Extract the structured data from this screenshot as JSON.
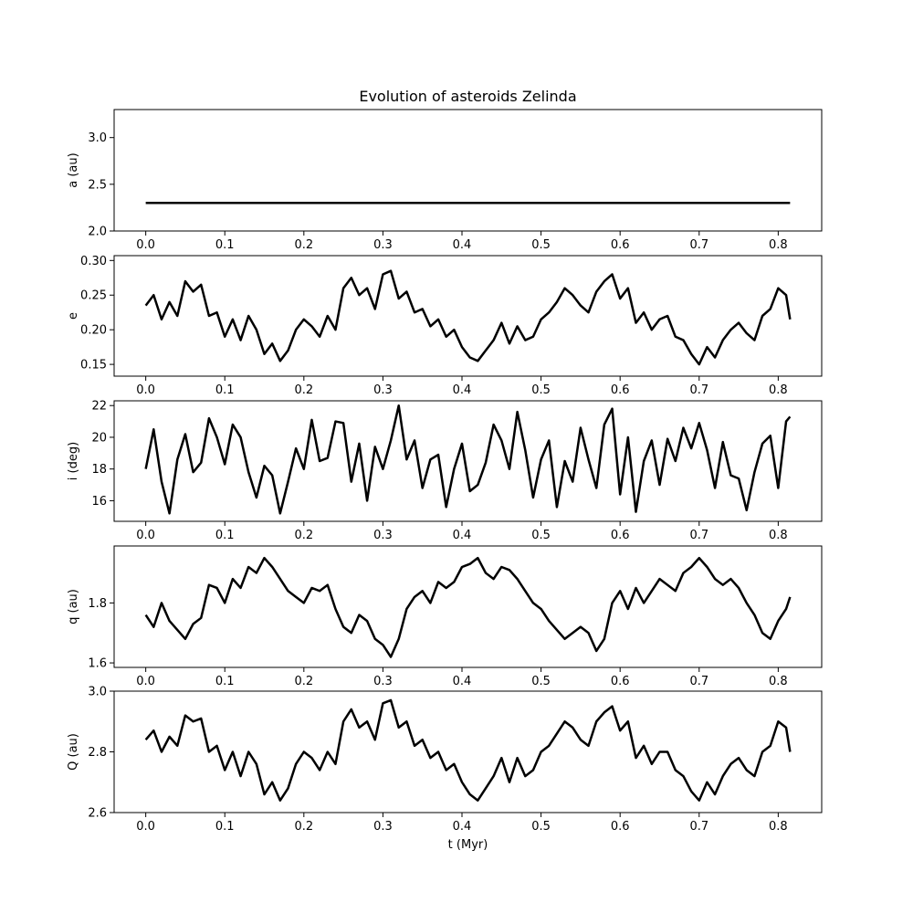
{
  "chart_data": {
    "type": "line",
    "title": "Evolution of asteroids Zelinda",
    "xlabel": "t (Myr)",
    "xlim": [
      -0.04,
      0.855
    ],
    "xticks": [
      "0.0",
      "0.1",
      "0.2",
      "0.3",
      "0.4",
      "0.5",
      "0.6",
      "0.7",
      "0.8"
    ],
    "line_color": "#000000",
    "grid": false,
    "panels": [
      {
        "ylabel": "a (au)",
        "ylim": [
          2.0,
          3.3
        ],
        "yticks": [
          "2.0",
          "2.5",
          "3.0"
        ],
        "series": [
          {
            "x": [
              0.0,
              0.815
            ],
            "y": [
              2.3,
              2.3
            ]
          }
        ]
      },
      {
        "ylabel": "e",
        "ylim": [
          0.133,
          0.307
        ],
        "yticks": [
          "0.15",
          "0.20",
          "0.25",
          "0.30"
        ],
        "series": [
          {
            "x": [
              0.0,
              0.01,
              0.02,
              0.03,
              0.04,
              0.05,
              0.06,
              0.07,
              0.08,
              0.09,
              0.1,
              0.11,
              0.12,
              0.13,
              0.14,
              0.15,
              0.16,
              0.17,
              0.18,
              0.19,
              0.2,
              0.21,
              0.22,
              0.23,
              0.24,
              0.25,
              0.26,
              0.27,
              0.28,
              0.29,
              0.3,
              0.31,
              0.32,
              0.33,
              0.34,
              0.35,
              0.36,
              0.37,
              0.38,
              0.39,
              0.4,
              0.41,
              0.42,
              0.43,
              0.44,
              0.45,
              0.46,
              0.47,
              0.48,
              0.49,
              0.5,
              0.51,
              0.52,
              0.53,
              0.54,
              0.55,
              0.56,
              0.57,
              0.58,
              0.59,
              0.6,
              0.61,
              0.62,
              0.63,
              0.64,
              0.65,
              0.66,
              0.67,
              0.68,
              0.69,
              0.7,
              0.71,
              0.72,
              0.73,
              0.74,
              0.75,
              0.76,
              0.77,
              0.78,
              0.79,
              0.8,
              0.81,
              0.815
            ],
            "y": [
              0.235,
              0.25,
              0.215,
              0.24,
              0.22,
              0.27,
              0.255,
              0.265,
              0.22,
              0.225,
              0.19,
              0.215,
              0.185,
              0.22,
              0.2,
              0.165,
              0.18,
              0.155,
              0.17,
              0.2,
              0.215,
              0.205,
              0.19,
              0.22,
              0.2,
              0.26,
              0.275,
              0.25,
              0.26,
              0.23,
              0.28,
              0.285,
              0.245,
              0.255,
              0.225,
              0.23,
              0.205,
              0.215,
              0.19,
              0.2,
              0.175,
              0.16,
              0.155,
              0.17,
              0.185,
              0.21,
              0.18,
              0.205,
              0.185,
              0.19,
              0.215,
              0.225,
              0.24,
              0.26,
              0.25,
              0.235,
              0.225,
              0.255,
              0.27,
              0.28,
              0.245,
              0.26,
              0.21,
              0.225,
              0.2,
              0.215,
              0.22,
              0.19,
              0.185,
              0.165,
              0.15,
              0.175,
              0.16,
              0.185,
              0.2,
              0.21,
              0.195,
              0.185,
              0.22,
              0.23,
              0.26,
              0.25,
              0.215
            ]
          }
        ]
      },
      {
        "ylabel": "i (deg)",
        "ylim": [
          14.7,
          22.3
        ],
        "yticks": [
          "16",
          "18",
          "20",
          "22"
        ],
        "series": [
          {
            "x": [
              0.0,
              0.01,
              0.02,
              0.03,
              0.04,
              0.05,
              0.06,
              0.07,
              0.08,
              0.09,
              0.1,
              0.11,
              0.12,
              0.13,
              0.14,
              0.15,
              0.16,
              0.17,
              0.18,
              0.19,
              0.2,
              0.21,
              0.22,
              0.23,
              0.24,
              0.25,
              0.26,
              0.27,
              0.28,
              0.29,
              0.3,
              0.31,
              0.32,
              0.33,
              0.34,
              0.35,
              0.36,
              0.37,
              0.38,
              0.39,
              0.4,
              0.41,
              0.42,
              0.43,
              0.44,
              0.45,
              0.46,
              0.47,
              0.48,
              0.49,
              0.5,
              0.51,
              0.52,
              0.53,
              0.54,
              0.55,
              0.56,
              0.57,
              0.58,
              0.59,
              0.6,
              0.61,
              0.62,
              0.63,
              0.64,
              0.65,
              0.66,
              0.67,
              0.68,
              0.69,
              0.7,
              0.71,
              0.72,
              0.73,
              0.74,
              0.75,
              0.76,
              0.77,
              0.78,
              0.79,
              0.8,
              0.81,
              0.815
            ],
            "y": [
              18.0,
              20.5,
              17.2,
              15.2,
              18.6,
              20.2,
              17.8,
              18.4,
              21.2,
              20.0,
              18.3,
              20.8,
              20.0,
              17.8,
              16.2,
              18.2,
              17.6,
              15.2,
              17.2,
              19.3,
              18.0,
              21.1,
              18.5,
              18.7,
              21.0,
              20.9,
              17.2,
              19.6,
              16.0,
              19.4,
              18.0,
              19.8,
              22.0,
              18.6,
              19.8,
              16.8,
              18.6,
              18.9,
              15.6,
              18.0,
              19.6,
              16.6,
              17.0,
              18.4,
              20.8,
              19.8,
              18.0,
              21.6,
              19.2,
              16.2,
              18.6,
              19.8,
              15.6,
              18.5,
              17.2,
              20.6,
              18.6,
              16.8,
              20.8,
              21.8,
              16.4,
              20.0,
              15.3,
              18.5,
              19.8,
              17.0,
              19.9,
              18.5,
              20.6,
              19.3,
              20.9,
              19.2,
              16.8,
              19.7,
              17.6,
              17.4,
              15.4,
              17.8,
              19.6,
              20.1,
              16.8,
              21.0,
              21.3
            ]
          }
        ]
      },
      {
        "ylabel": "q (au)",
        "ylim": [
          1.585,
          1.99
        ],
        "yticks": [
          "1.6",
          "1.8"
        ],
        "series": [
          {
            "x": [
              0.0,
              0.01,
              0.02,
              0.03,
              0.04,
              0.05,
              0.06,
              0.07,
              0.08,
              0.09,
              0.1,
              0.11,
              0.12,
              0.13,
              0.14,
              0.15,
              0.16,
              0.17,
              0.18,
              0.19,
              0.2,
              0.21,
              0.22,
              0.23,
              0.24,
              0.25,
              0.26,
              0.27,
              0.28,
              0.29,
              0.3,
              0.31,
              0.32,
              0.33,
              0.34,
              0.35,
              0.36,
              0.37,
              0.38,
              0.39,
              0.4,
              0.41,
              0.42,
              0.43,
              0.44,
              0.45,
              0.46,
              0.47,
              0.48,
              0.49,
              0.5,
              0.51,
              0.52,
              0.53,
              0.54,
              0.55,
              0.56,
              0.57,
              0.58,
              0.59,
              0.6,
              0.61,
              0.62,
              0.63,
              0.64,
              0.65,
              0.66,
              0.67,
              0.68,
              0.69,
              0.7,
              0.71,
              0.72,
              0.73,
              0.74,
              0.75,
              0.76,
              0.77,
              0.78,
              0.79,
              0.8,
              0.81,
              0.815
            ],
            "y": [
              1.76,
              1.72,
              1.8,
              1.74,
              1.71,
              1.68,
              1.73,
              1.75,
              1.86,
              1.85,
              1.8,
              1.88,
              1.85,
              1.92,
              1.9,
              1.95,
              1.92,
              1.88,
              1.84,
              1.82,
              1.8,
              1.85,
              1.84,
              1.86,
              1.78,
              1.72,
              1.7,
              1.76,
              1.74,
              1.68,
              1.66,
              1.62,
              1.68,
              1.78,
              1.82,
              1.84,
              1.8,
              1.87,
              1.85,
              1.87,
              1.92,
              1.93,
              1.95,
              1.9,
              1.88,
              1.92,
              1.91,
              1.88,
              1.84,
              1.8,
              1.78,
              1.74,
              1.71,
              1.68,
              1.7,
              1.72,
              1.7,
              1.64,
              1.68,
              1.8,
              1.84,
              1.78,
              1.85,
              1.8,
              1.84,
              1.88,
              1.86,
              1.84,
              1.9,
              1.92,
              1.95,
              1.92,
              1.88,
              1.86,
              1.88,
              1.85,
              1.8,
              1.76,
              1.7,
              1.68,
              1.74,
              1.78,
              1.82
            ]
          }
        ]
      },
      {
        "ylabel": "Q (au)",
        "ylim": [
          2.6,
          3.0
        ],
        "yticks": [
          "2.6",
          "2.8",
          "3.0"
        ],
        "series": [
          {
            "x": [
              0.0,
              0.01,
              0.02,
              0.03,
              0.04,
              0.05,
              0.06,
              0.07,
              0.08,
              0.09,
              0.1,
              0.11,
              0.12,
              0.13,
              0.14,
              0.15,
              0.16,
              0.17,
              0.18,
              0.19,
              0.2,
              0.21,
              0.22,
              0.23,
              0.24,
              0.25,
              0.26,
              0.27,
              0.28,
              0.29,
              0.3,
              0.31,
              0.32,
              0.33,
              0.34,
              0.35,
              0.36,
              0.37,
              0.38,
              0.39,
              0.4,
              0.41,
              0.42,
              0.43,
              0.44,
              0.45,
              0.46,
              0.47,
              0.48,
              0.49,
              0.5,
              0.51,
              0.52,
              0.53,
              0.54,
              0.55,
              0.56,
              0.57,
              0.58,
              0.59,
              0.6,
              0.61,
              0.62,
              0.63,
              0.64,
              0.65,
              0.66,
              0.67,
              0.68,
              0.69,
              0.7,
              0.71,
              0.72,
              0.73,
              0.74,
              0.75,
              0.76,
              0.77,
              0.78,
              0.79,
              0.8,
              0.81,
              0.815
            ],
            "y": [
              2.84,
              2.87,
              2.8,
              2.85,
              2.82,
              2.92,
              2.9,
              2.91,
              2.8,
              2.82,
              2.74,
              2.8,
              2.72,
              2.8,
              2.76,
              2.66,
              2.7,
              2.64,
              2.68,
              2.76,
              2.8,
              2.78,
              2.74,
              2.8,
              2.76,
              2.9,
              2.94,
              2.88,
              2.9,
              2.84,
              2.96,
              2.97,
              2.88,
              2.9,
              2.82,
              2.84,
              2.78,
              2.8,
              2.74,
              2.76,
              2.7,
              2.66,
              2.64,
              2.68,
              2.72,
              2.78,
              2.7,
              2.78,
              2.72,
              2.74,
              2.8,
              2.82,
              2.86,
              2.9,
              2.88,
              2.84,
              2.82,
              2.9,
              2.93,
              2.95,
              2.87,
              2.9,
              2.78,
              2.82,
              2.76,
              2.8,
              2.8,
              2.74,
              2.72,
              2.67,
              2.64,
              2.7,
              2.66,
              2.72,
              2.76,
              2.78,
              2.74,
              2.72,
              2.8,
              2.82,
              2.9,
              2.88,
              2.8
            ]
          }
        ]
      }
    ]
  }
}
